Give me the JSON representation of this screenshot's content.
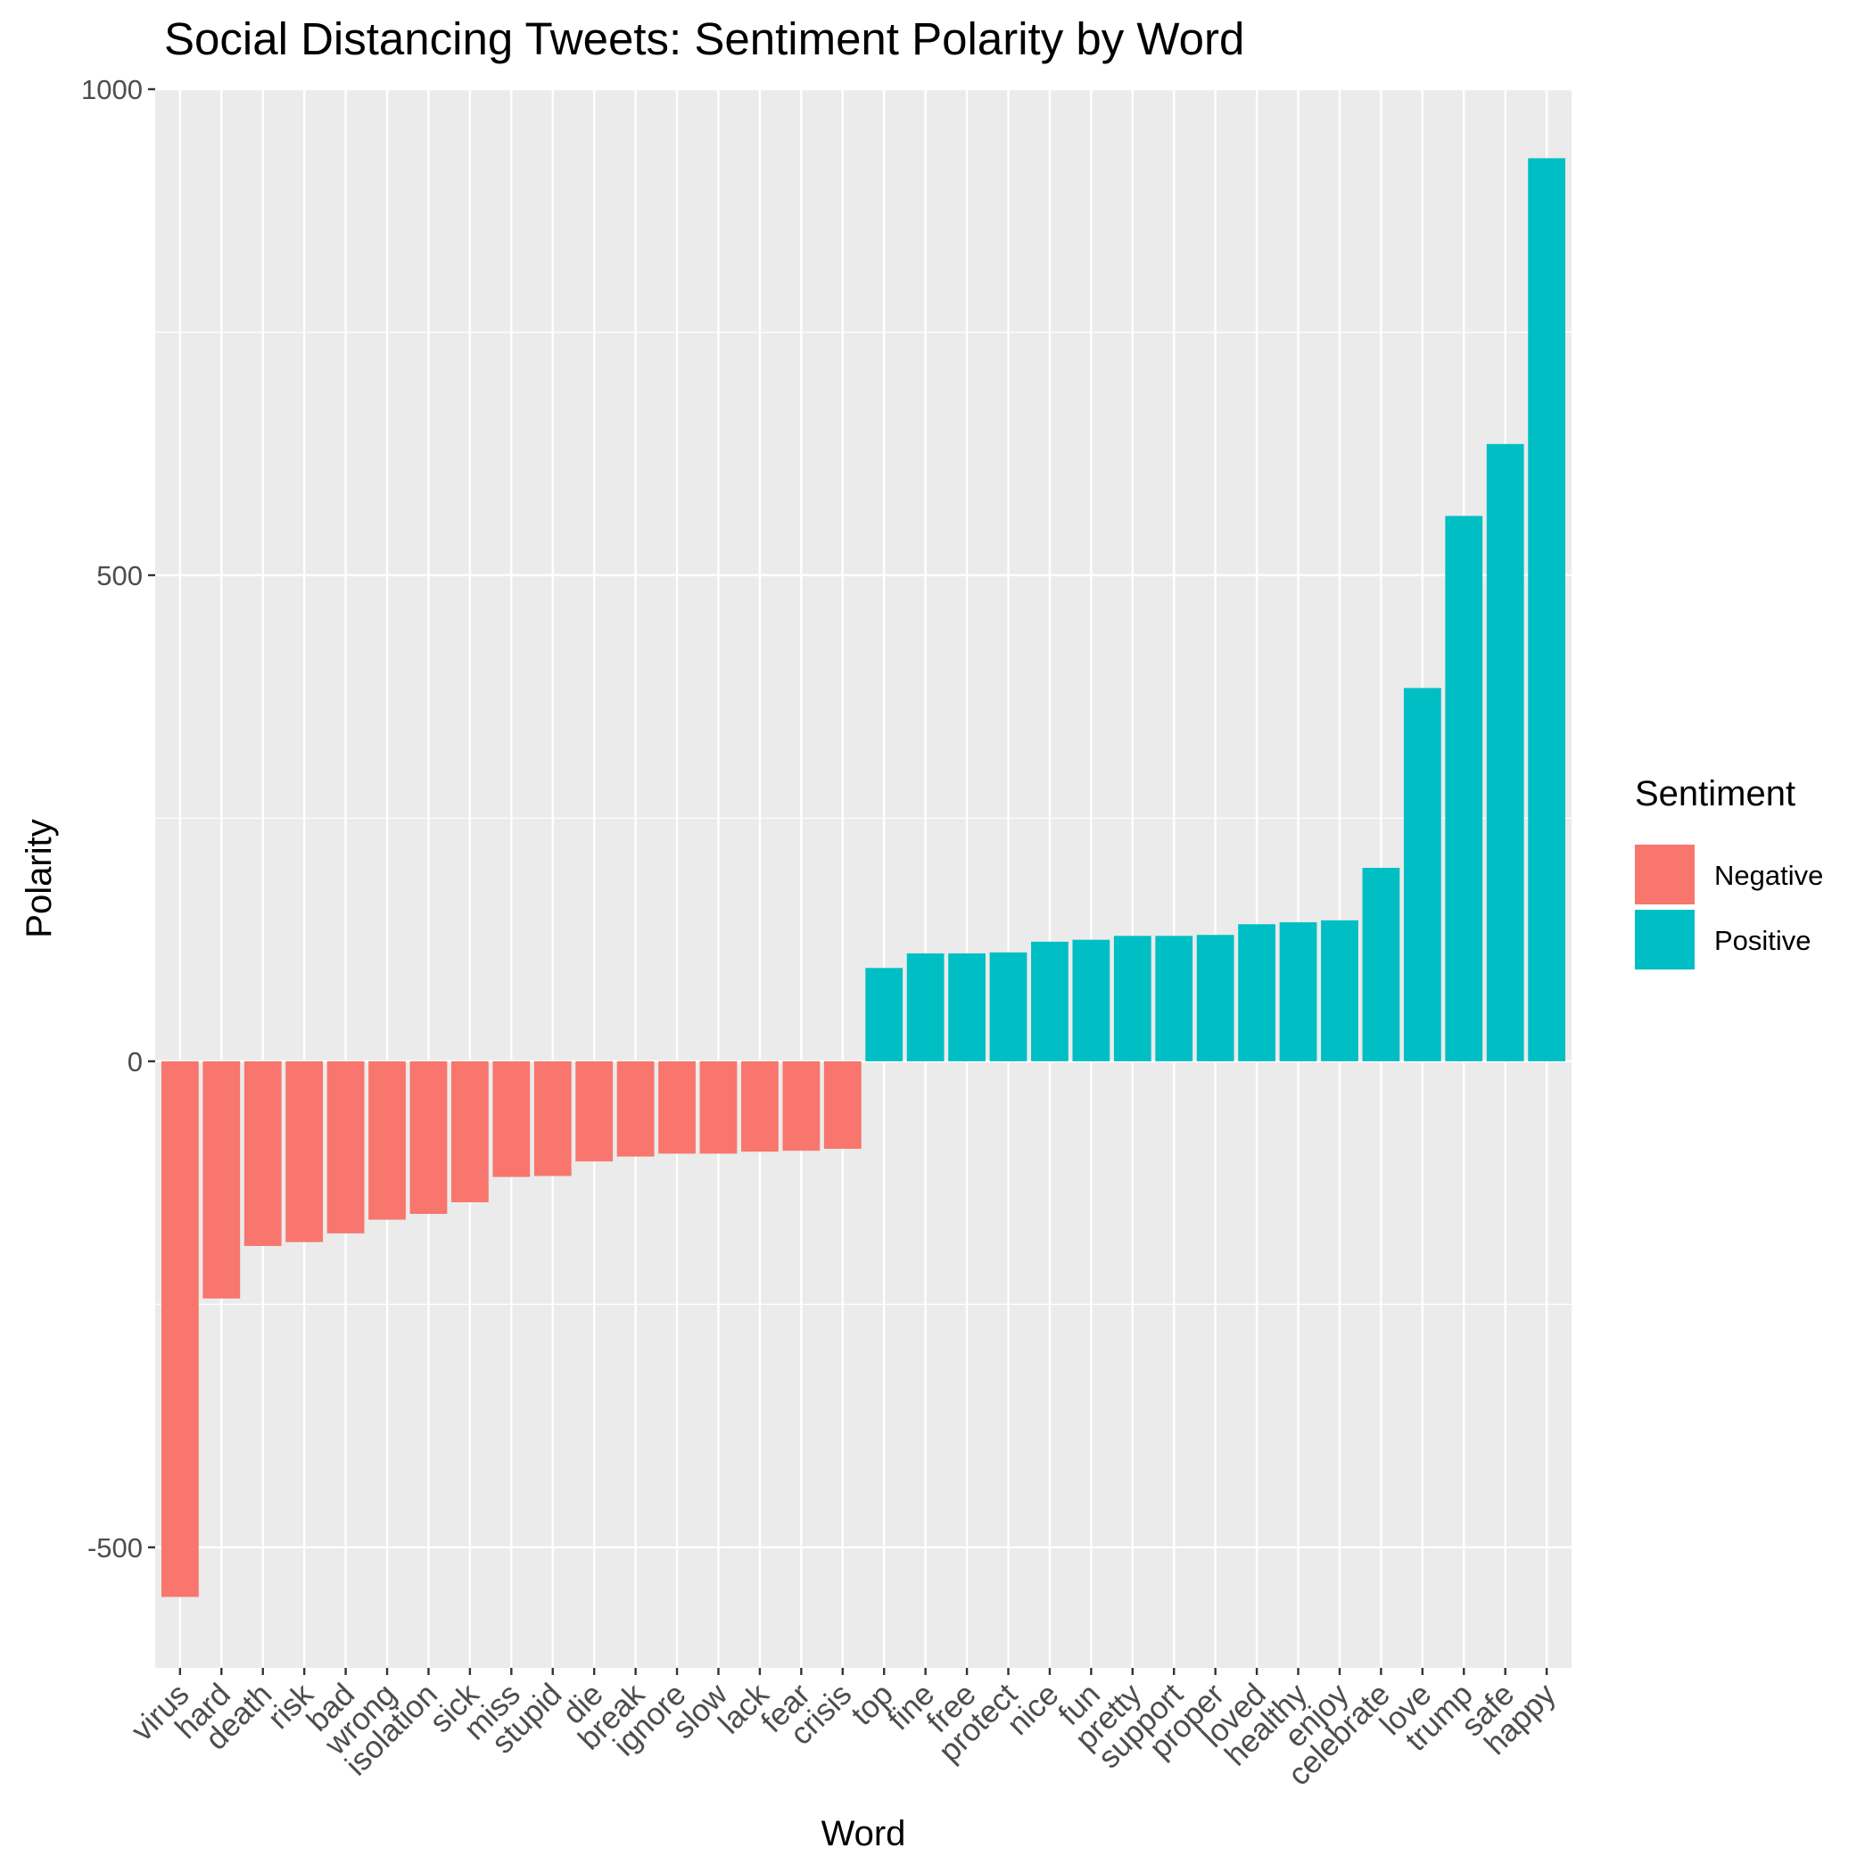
{
  "chart_data": {
    "type": "bar",
    "title": "Social Distancing Tweets: Sentiment Polarity by Word",
    "xlabel": "Word",
    "ylabel": "Polarity",
    "ylim": [
      -600,
      1000
    ],
    "yticks": [
      -500,
      0,
      500,
      1000
    ],
    "grid": true,
    "legend_position": "right",
    "legend": {
      "title": "Sentiment",
      "entries": [
        {
          "label": "Negative",
          "color": "#F8766D"
        },
        {
          "label": "Positive",
          "color": "#00BFC4"
        }
      ]
    },
    "categories": [
      "virus",
      "hard",
      "death",
      "risk",
      "bad",
      "wrong",
      "isolation",
      "sick",
      "miss",
      "stupid",
      "die",
      "break",
      "ignore",
      "slow",
      "lack",
      "fear",
      "crisis",
      "top",
      "fine",
      "free",
      "protect",
      "nice",
      "fun",
      "pretty",
      "support",
      "proper",
      "loved",
      "healthy",
      "enjoy",
      "celebrate",
      "love",
      "trump",
      "safe",
      "happy"
    ],
    "values": [
      -551,
      -244,
      -190,
      -186,
      -177,
      -163,
      -157,
      -145,
      -119,
      -118,
      -103,
      -98,
      -95,
      -95,
      -93,
      -92,
      -90,
      96,
      111,
      111,
      112,
      123,
      125,
      129,
      129,
      130,
      141,
      143,
      145,
      199,
      384,
      561,
      635,
      929
    ],
    "sentiment": [
      "Negative",
      "Negative",
      "Negative",
      "Negative",
      "Negative",
      "Negative",
      "Negative",
      "Negative",
      "Negative",
      "Negative",
      "Negative",
      "Negative",
      "Negative",
      "Negative",
      "Negative",
      "Negative",
      "Negative",
      "Positive",
      "Positive",
      "Positive",
      "Positive",
      "Positive",
      "Positive",
      "Positive",
      "Positive",
      "Positive",
      "Positive",
      "Positive",
      "Positive",
      "Positive",
      "Positive",
      "Positive",
      "Positive",
      "Positive"
    ]
  }
}
